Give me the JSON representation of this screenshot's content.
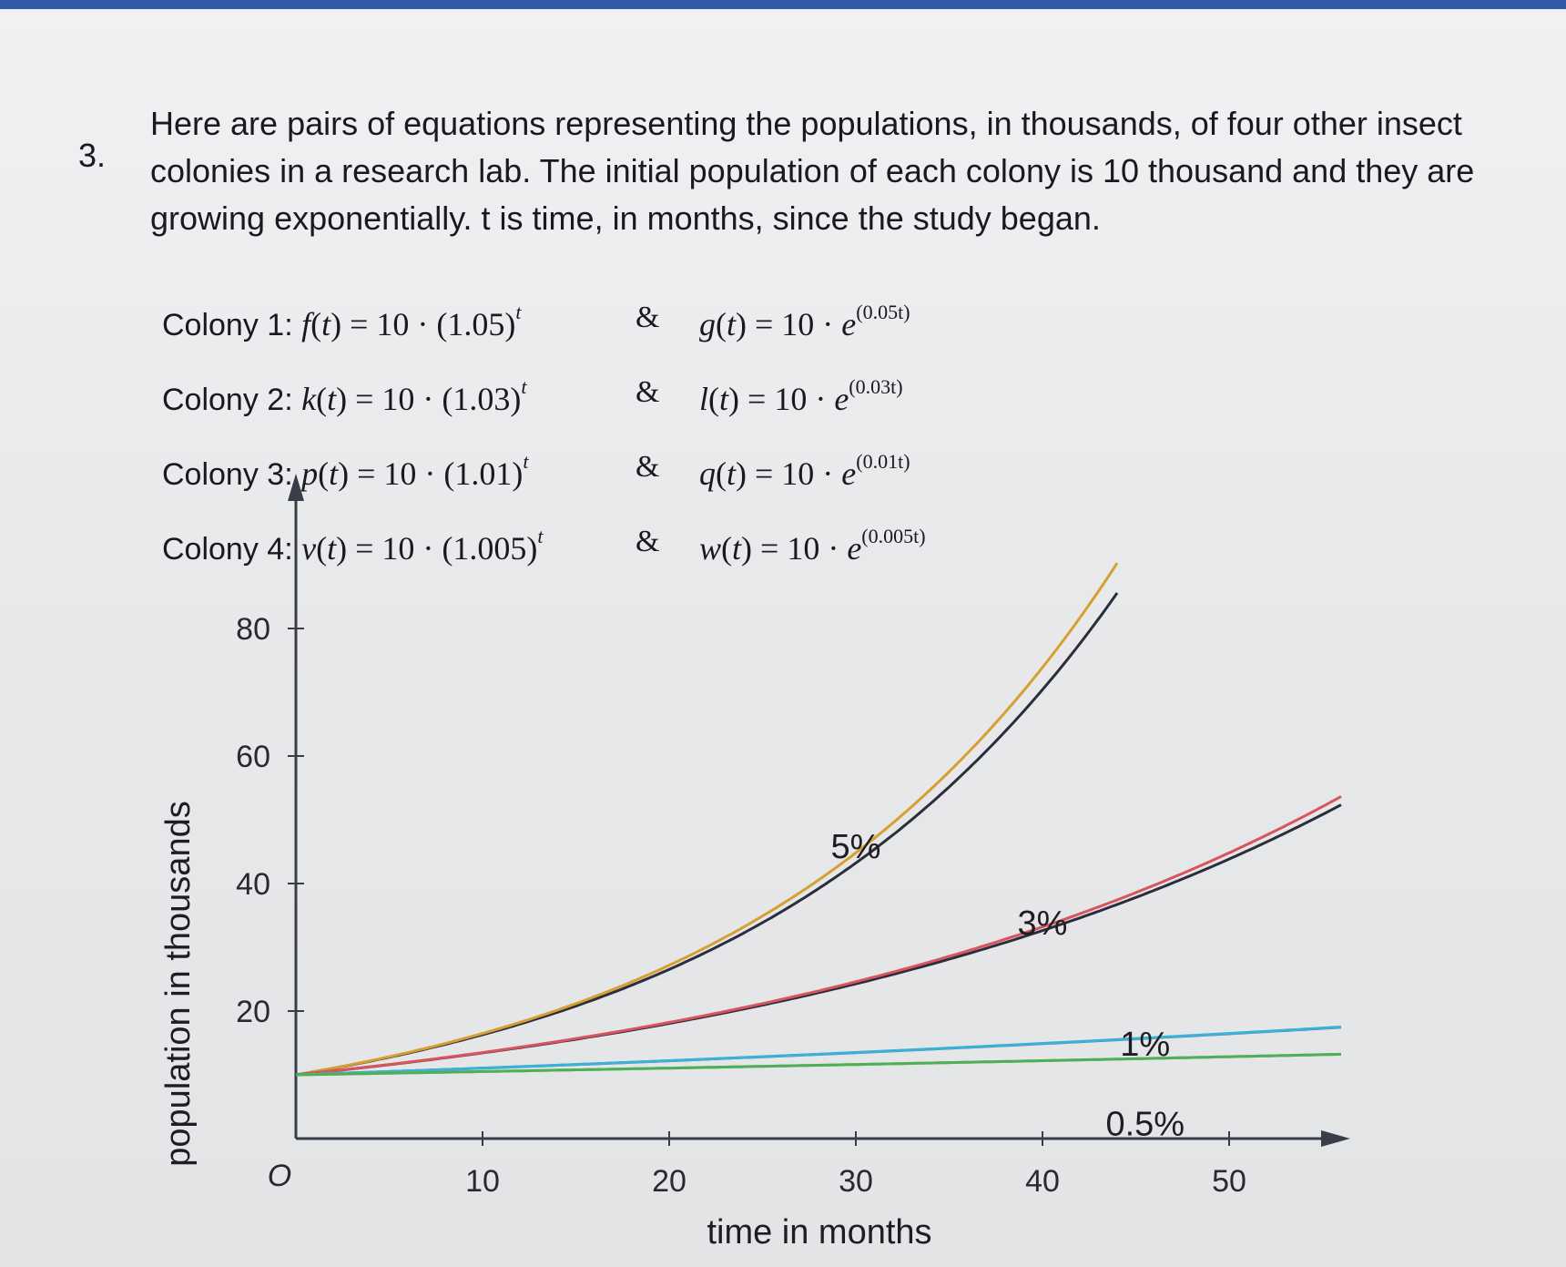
{
  "problem": {
    "number": "3.",
    "text": "Here are pairs of equations representing the populations, in thousands, of four other insect colonies in a research lab. The initial population of each colony is 10 thousand and they are growing exponentially. t is time, in months, since the study began."
  },
  "equations": [
    {
      "label": "Colony 1:",
      "f_name": "f",
      "base": "1.05",
      "amp": "&",
      "g_name": "g",
      "exp": "0.05t"
    },
    {
      "label": "Colony 2:",
      "f_name": "k",
      "base": "1.03",
      "amp": "&",
      "g_name": "l",
      "exp": "0.03t"
    },
    {
      "label": "Colony 3:",
      "f_name": "p",
      "base": "1.01",
      "amp": "&",
      "g_name": "q",
      "exp": "0.01t"
    },
    {
      "label": "Colony 4:",
      "f_name": "v",
      "base": "1.005",
      "amp": "&",
      "g_name": "w",
      "exp": "0.005t"
    }
  ],
  "chart_data": {
    "type": "line",
    "xlabel": "time in months",
    "ylabel": "population in thousands",
    "origin_label": "O",
    "xlim": [
      0,
      56
    ],
    "ylim": [
      0,
      90
    ],
    "xticks": [
      10,
      20,
      30,
      40,
      50
    ],
    "yticks": [
      20,
      40,
      60,
      80
    ],
    "grid": false,
    "series": [
      {
        "name": "5%",
        "kind": "discrete",
        "rate": 1.05,
        "t_max": 44,
        "color": "#2b2d3e"
      },
      {
        "name": "5%",
        "kind": "continuous",
        "rate": 0.05,
        "t_max": 44,
        "color": "#d6a030"
      },
      {
        "name": "3%",
        "kind": "discrete",
        "rate": 1.03,
        "t_max": 56,
        "color": "#2b2d3e"
      },
      {
        "name": "3%",
        "kind": "continuous",
        "rate": 0.03,
        "t_max": 56,
        "color": "#d9545c"
      },
      {
        "name": "1%",
        "kind": "discrete",
        "rate": 1.01,
        "t_max": 56,
        "color": "#4e6fa0"
      },
      {
        "name": "1%",
        "kind": "continuous",
        "rate": 0.01,
        "t_max": 56,
        "color": "#3bb0d8"
      },
      {
        "name": "0.5%",
        "kind": "discrete",
        "rate": 1.005,
        "t_max": 56,
        "color": "#c8b03a"
      },
      {
        "name": "0.5%",
        "kind": "continuous",
        "rate": 0.005,
        "t_max": 56,
        "color": "#4cb05a"
      }
    ],
    "labels": [
      {
        "text": "5%",
        "x": 30,
        "y": 44
      },
      {
        "text": "3%",
        "x": 40,
        "y": 32
      },
      {
        "text": "1%",
        "x": 45.5,
        "y": 13
      },
      {
        "text": "0.5%",
        "x": 45.5,
        "y": 0.5
      }
    ]
  }
}
